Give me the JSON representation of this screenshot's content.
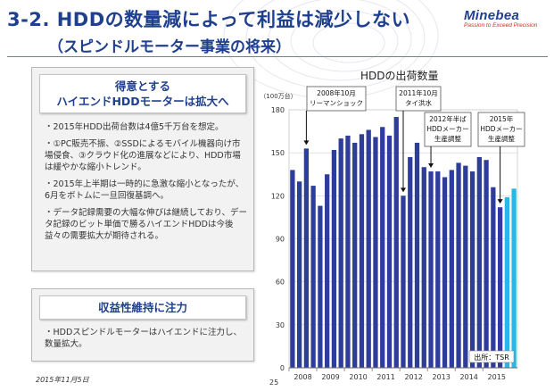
{
  "header": {
    "title": "3-2. HDDの数量減によって利益は減少しない",
    "subtitle": "（スピンドルモーター事業の将来）",
    "logo_name": "Minebea",
    "logo_tagline": "Passion to Exceed Precision"
  },
  "panel_strength": {
    "heading_line1": "得意とする",
    "heading_line2": "ハイエンドHDDモーターは拡大へ",
    "bullets": [
      "・2015年HDD出荷台数は4億5千万台を想定。",
      "・①PC販売不振、②SSDによるモバイル機器向け市場侵食、③クラウド化の進展などにより、HDD市場は緩やかな縮小トレンド。",
      "・2015年上半期は一時的に急激な縮小となったが、6月をボトムに一旦回復基調へ。",
      "・データ記録需要の大幅な伸びは継続しており、データ記録のビット単価で勝るハイエンドHDDは今後益々の需要拡大が期待される。"
    ]
  },
  "panel_profit": {
    "heading": "収益性維持に注力",
    "bullets": [
      "・HDDスピンドルモーターはハイエンドに注力し、数量拡大。"
    ]
  },
  "footer": {
    "date": "2015年11月5日",
    "page": "25"
  },
  "chart_data": {
    "type": "bar",
    "title": "HDDの出荷数量",
    "unit_label": "（100万台）",
    "ylim": [
      0,
      180
    ],
    "yticks": [
      0,
      30,
      60,
      90,
      120,
      150,
      180
    ],
    "year_labels": [
      "2008",
      "2009",
      "2010",
      "2011",
      "2012",
      "2013",
      "2014",
      "2015"
    ],
    "values": [
      138,
      130,
      153,
      127,
      113,
      135,
      152,
      160,
      162,
      157,
      163,
      166,
      161,
      168,
      162,
      175,
      120,
      147,
      157,
      140,
      137,
      137,
      133,
      138,
      143,
      141,
      137,
      147,
      145,
      126,
      112,
      119,
      125
    ],
    "bar_colors": {
      "actual": "#2e3d9c",
      "forecast": "#29b6e8"
    },
    "forecast_from_index": 31,
    "source": "出所：TSR",
    "annotations": [
      {
        "lines": [
          "2008年10月",
          "リーマンショック"
        ],
        "bar_index": 2
      },
      {
        "lines": [
          "2011年10月",
          "タイ洪水"
        ],
        "bar_index": 16
      },
      {
        "lines": [
          "2012年半ば",
          "HDDメーカー",
          "生産調整"
        ],
        "bar_index": 20
      },
      {
        "lines": [
          "2015年",
          "HDDメーカー",
          "生産調整"
        ],
        "bar_index": 30
      }
    ]
  }
}
